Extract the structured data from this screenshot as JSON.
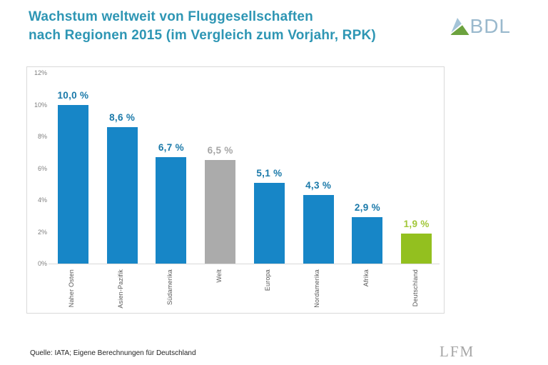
{
  "page": {
    "title_line1": "Wachstum weltweit von Fluggesellschaften",
    "title_line2": "nach Regionen 2015 (im Vergleich zum Vorjahr, RPK)",
    "source": "Quelle: IATA; Eigene Berechnungen für Deutschland",
    "watermark": "LFM"
  },
  "logo": {
    "text": "BDL"
  },
  "colors": {
    "title": "#2e96b4",
    "bar-blue": "#1786c7",
    "bar-gray": "#ababab",
    "bar-green": "#93c01f",
    "label-blue": "#1a79a9",
    "label-gray": "#a6a6a6",
    "label-green": "#a2c73a",
    "tick": "#7f7f7f",
    "xlabel": "#595959",
    "border": "#d9d9d9",
    "logo-text": "#9ab9cd",
    "logo-blue": "#a4c4d8",
    "logo-green": "#6ca23e",
    "source-text": "#242424",
    "watermark": "#a6a6a6"
  },
  "chart_data": {
    "type": "bar",
    "title": "Wachstum weltweit von Fluggesellschaften nach Regionen 2015 (im Vergleich zum Vorjahr, RPK)",
    "categories": [
      "Naher Osten",
      "Asien-Pazifik",
      "Südamerika",
      "Welt",
      "Europa",
      "Nordamerika",
      "Afrika",
      "Deutschland"
    ],
    "values": [
      10.0,
      8.6,
      6.7,
      6.5,
      5.1,
      4.3,
      2.9,
      1.9
    ],
    "value_labels": [
      "10,0 %",
      "8,6 %",
      "6,7 %",
      "6,5 %",
      "5,1 %",
      "4,3 %",
      "2,9 %",
      "1,9 %"
    ],
    "bar_color_keys": [
      "blue",
      "blue",
      "blue",
      "gray",
      "blue",
      "blue",
      "blue",
      "green"
    ],
    "highlight_note": "Welt ist grau, Deutschland ist grün hervorgehoben",
    "ylim": [
      0,
      12
    ],
    "ytick_step": 2,
    "yticks": [
      "0%",
      "2%",
      "4%",
      "6%",
      "8%",
      "10%",
      "12%"
    ],
    "grid": false,
    "legend_position": "none",
    "xlabel": "",
    "ylabel": ""
  }
}
